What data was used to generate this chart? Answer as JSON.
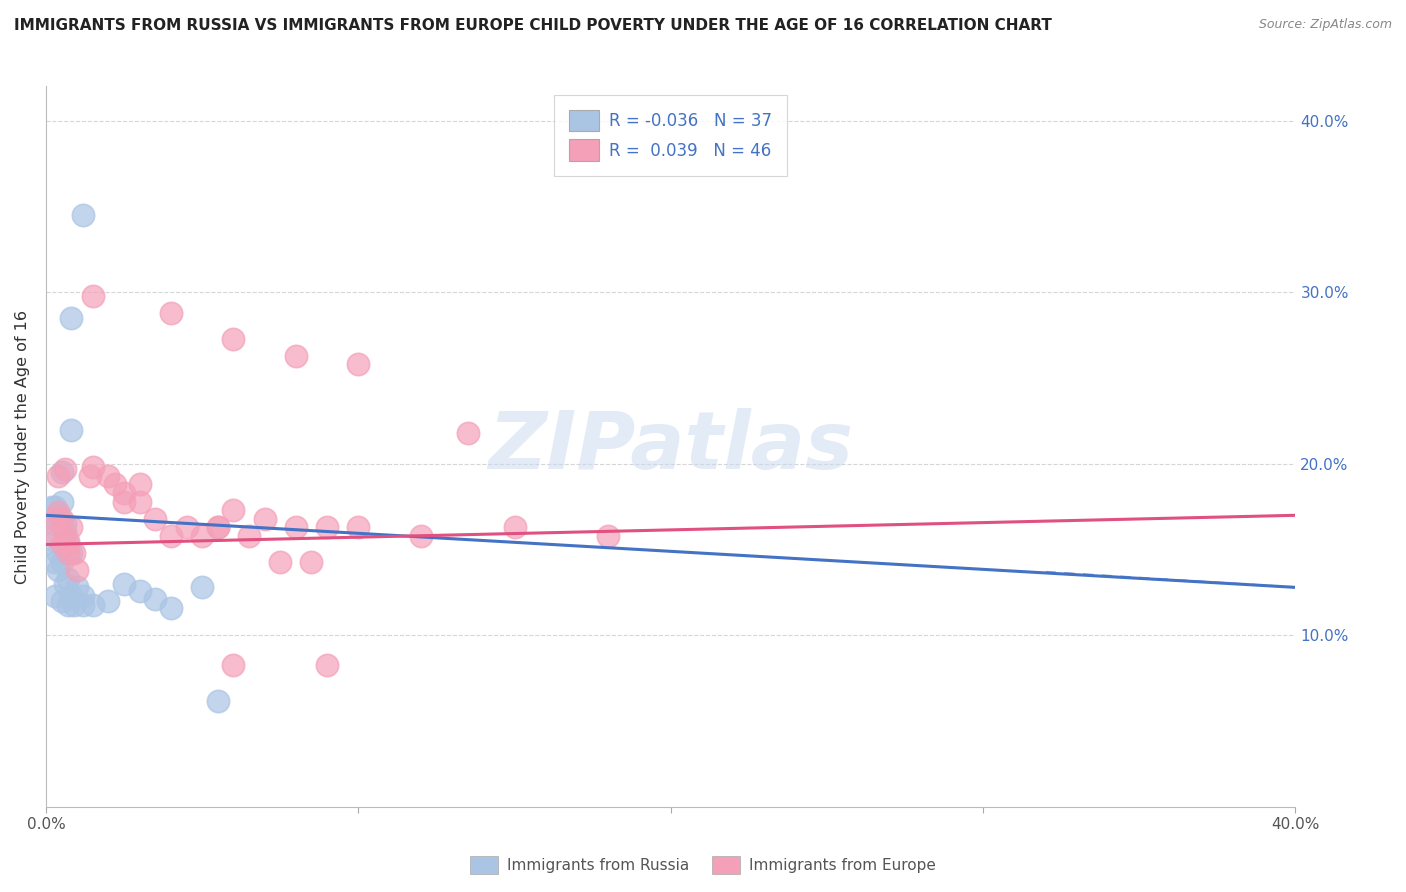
{
  "title": "IMMIGRANTS FROM RUSSIA VS IMMIGRANTS FROM EUROPE CHILD POVERTY UNDER THE AGE OF 16 CORRELATION CHART",
  "source": "Source: ZipAtlas.com",
  "ylabel": "Child Poverty Under the Age of 16",
  "xlim": [
    0.0,
    0.4
  ],
  "ylim": [
    0.0,
    0.42
  ],
  "watermark": "ZIPatlas",
  "legend_russia_R": "-0.036",
  "legend_russia_N": "37",
  "legend_europe_R": "0.039",
  "legend_europe_N": "46",
  "russia_color": "#aac4e4",
  "europe_color": "#f4a0b8",
  "russia_edge": "#aac4e4",
  "europe_edge": "#f4a0b8",
  "russia_line_color": "#4472c4",
  "europe_line_color": "#e05080",
  "russia_scatter": [
    [
      0.005,
      0.195
    ],
    [
      0.008,
      0.22
    ],
    [
      0.003,
      0.175
    ],
    [
      0.004,
      0.17
    ],
    [
      0.003,
      0.165
    ],
    [
      0.006,
      0.16
    ],
    [
      0.002,
      0.175
    ],
    [
      0.005,
      0.178
    ],
    [
      0.004,
      0.168
    ],
    [
      0.006,
      0.165
    ],
    [
      0.003,
      0.155
    ],
    [
      0.007,
      0.155
    ],
    [
      0.004,
      0.148
    ],
    [
      0.008,
      0.148
    ],
    [
      0.003,
      0.143
    ],
    [
      0.005,
      0.143
    ],
    [
      0.004,
      0.138
    ],
    [
      0.007,
      0.133
    ],
    [
      0.006,
      0.13
    ],
    [
      0.008,
      0.123
    ],
    [
      0.01,
      0.128
    ],
    [
      0.012,
      0.123
    ],
    [
      0.003,
      0.123
    ],
    [
      0.005,
      0.12
    ],
    [
      0.007,
      0.118
    ],
    [
      0.009,
      0.118
    ],
    [
      0.012,
      0.118
    ],
    [
      0.015,
      0.118
    ],
    [
      0.02,
      0.12
    ],
    [
      0.025,
      0.13
    ],
    [
      0.03,
      0.126
    ],
    [
      0.035,
      0.121
    ],
    [
      0.04,
      0.116
    ],
    [
      0.05,
      0.128
    ],
    [
      0.012,
      0.345
    ],
    [
      0.008,
      0.285
    ],
    [
      0.055,
      0.062
    ]
  ],
  "europe_scatter": [
    [
      0.004,
      0.193
    ],
    [
      0.006,
      0.197
    ],
    [
      0.005,
      0.168
    ],
    [
      0.006,
      0.158
    ],
    [
      0.007,
      0.153
    ],
    [
      0.008,
      0.163
    ],
    [
      0.003,
      0.168
    ],
    [
      0.004,
      0.172
    ],
    [
      0.003,
      0.158
    ],
    [
      0.005,
      0.153
    ],
    [
      0.007,
      0.148
    ],
    [
      0.009,
      0.148
    ],
    [
      0.01,
      0.138
    ],
    [
      0.014,
      0.193
    ],
    [
      0.015,
      0.198
    ],
    [
      0.02,
      0.193
    ],
    [
      0.022,
      0.188
    ],
    [
      0.025,
      0.183
    ],
    [
      0.025,
      0.178
    ],
    [
      0.03,
      0.178
    ],
    [
      0.03,
      0.188
    ],
    [
      0.035,
      0.168
    ],
    [
      0.04,
      0.158
    ],
    [
      0.045,
      0.163
    ],
    [
      0.05,
      0.158
    ],
    [
      0.055,
      0.163
    ],
    [
      0.06,
      0.173
    ],
    [
      0.07,
      0.168
    ],
    [
      0.08,
      0.163
    ],
    [
      0.09,
      0.163
    ],
    [
      0.1,
      0.163
    ],
    [
      0.12,
      0.158
    ],
    [
      0.15,
      0.163
    ],
    [
      0.18,
      0.158
    ],
    [
      0.015,
      0.298
    ],
    [
      0.04,
      0.288
    ],
    [
      0.06,
      0.273
    ],
    [
      0.08,
      0.263
    ],
    [
      0.1,
      0.258
    ],
    [
      0.135,
      0.218
    ],
    [
      0.055,
      0.163
    ],
    [
      0.065,
      0.158
    ],
    [
      0.075,
      0.143
    ],
    [
      0.085,
      0.143
    ],
    [
      0.06,
      0.083
    ],
    [
      0.09,
      0.083
    ]
  ],
  "background_color": "#ffffff"
}
